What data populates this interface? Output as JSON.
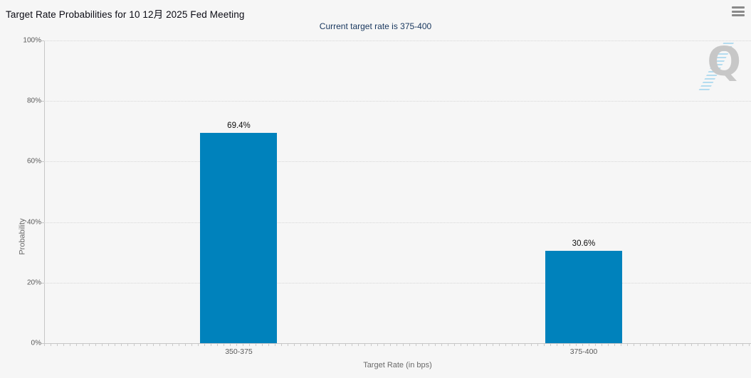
{
  "header": {
    "title": "Target Rate Probabilities for 10 12月 2025 Fed Meeting"
  },
  "subtitle": "Current target rate is 375-400",
  "watermark_letter": "Q",
  "chart_data": {
    "type": "bar",
    "title": "Target Rate Probabilities for 10 12月 2025 Fed Meeting",
    "subtitle": "Current target rate is 375-400",
    "categories": [
      "350-375",
      "375-400"
    ],
    "values": [
      69.4,
      30.6
    ],
    "value_labels": [
      "69.4%",
      "30.6%"
    ],
    "xlabel": "Target Rate (in bps)",
    "ylabel": "Probability",
    "ylim": [
      0,
      100
    ],
    "ytick_values": [
      0,
      20,
      40,
      60,
      80,
      100
    ],
    "ytick_labels": [
      "0%",
      "20%",
      "40%",
      "60%",
      "80%",
      "100%"
    ],
    "grid": "horizontal-dotted",
    "legend": "none",
    "bar_color": "#0082bc"
  },
  "colors": {
    "background": "#f6f6f6",
    "bar": "#0082bc",
    "subtitle_text": "#17365d",
    "title_text": "#0b0b14",
    "axis": "#c6c6c6",
    "grid": "#d7d7d7",
    "tick_text": "#5a5a5a",
    "menu_icon": "#8a8a8a",
    "watermark_gray": "#c7c7c7",
    "watermark_blue": "#7dc7e9"
  }
}
